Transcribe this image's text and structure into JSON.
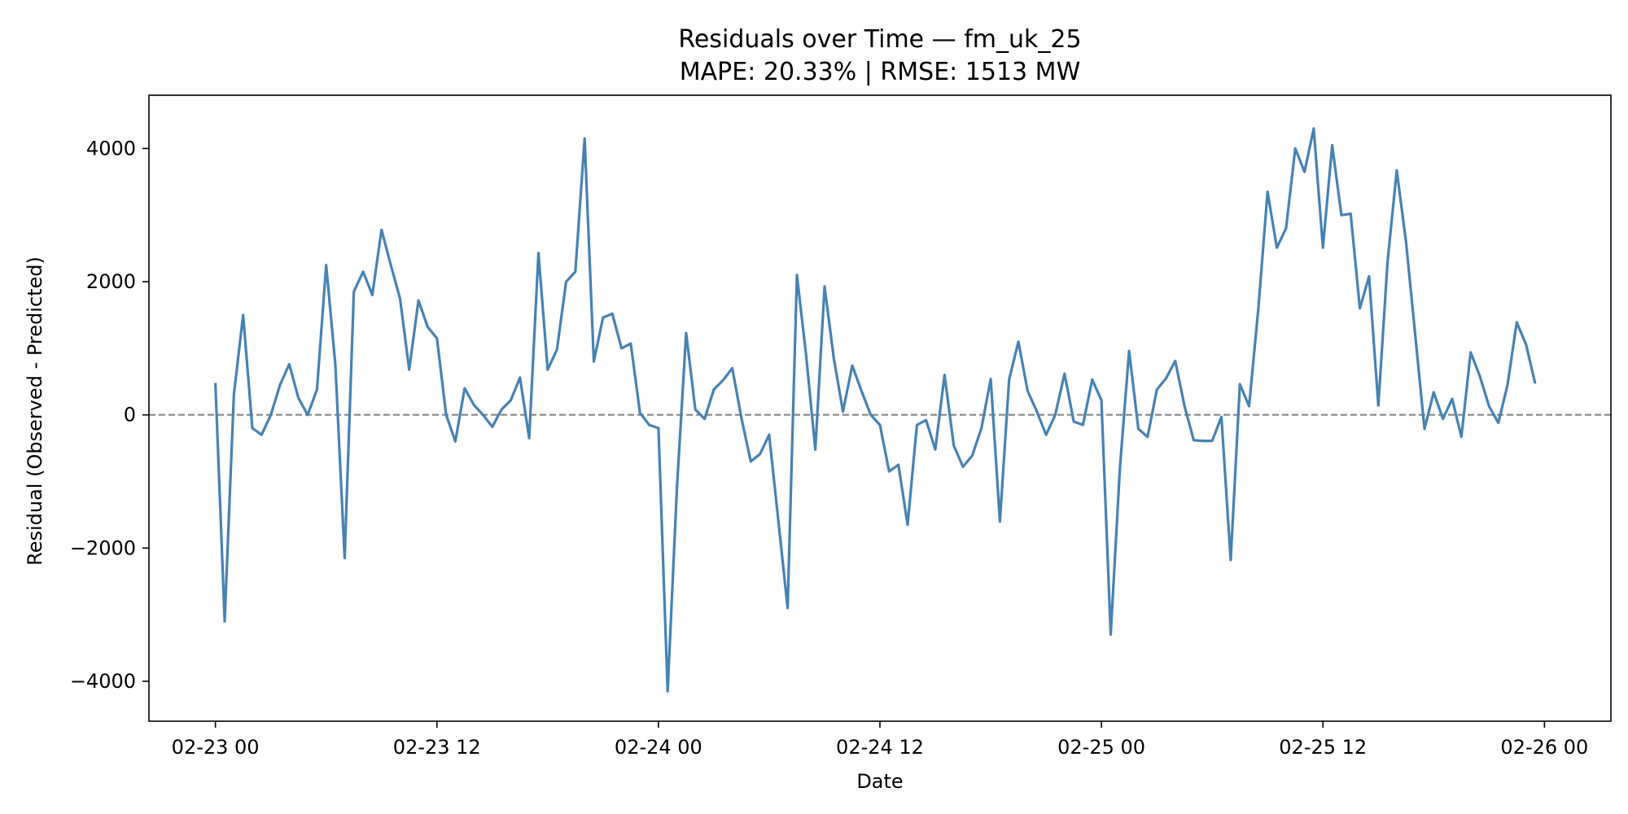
{
  "chart_data": {
    "type": "line",
    "title": "Residuals over Time — fm_uk_25",
    "subtitle": "MAPE: 20.33%  |  RMSE: 1513 MW",
    "xlabel": "Date",
    "ylabel": "Residual (Observed - Predicted)",
    "x_start": "2025-02-23T00:00",
    "x_step_hours": 0.5,
    "xlim": [
      "2025-02-22T20:24",
      "2025-02-26T03:36"
    ],
    "ylim": [
      -4600,
      4800
    ],
    "x_ticks": [
      {
        "value": "2025-02-23T00:00",
        "label": "02-23 00"
      },
      {
        "value": "2025-02-23T12:00",
        "label": "02-23 12"
      },
      {
        "value": "2025-02-24T00:00",
        "label": "02-24 00"
      },
      {
        "value": "2025-02-24T12:00",
        "label": "02-24 12"
      },
      {
        "value": "2025-02-25T00:00",
        "label": "02-25 00"
      },
      {
        "value": "2025-02-25T12:00",
        "label": "02-25 12"
      },
      {
        "value": "2025-02-26T00:00",
        "label": "02-26 00"
      }
    ],
    "y_ticks": [
      {
        "value": 4000,
        "label": "4000"
      },
      {
        "value": 2000,
        "label": "2000"
      },
      {
        "value": 0,
        "label": "0"
      },
      {
        "value": -2000,
        "label": "−2000"
      },
      {
        "value": -4000,
        "label": "−4000"
      }
    ],
    "reference_line": {
      "y": 0,
      "style": "dashed",
      "color": "#808080"
    },
    "grid": false,
    "series": [
      {
        "color": "#4682b4",
        "x": [
          "2025-02-23T00:00",
          "2025-02-23T00:30",
          "2025-02-23T01:00",
          "2025-02-23T01:30",
          "2025-02-23T02:00",
          "2025-02-23T02:30",
          "2025-02-23T03:00",
          "2025-02-23T03:30",
          "2025-02-23T04:00",
          "2025-02-23T04:30",
          "2025-02-23T05:00",
          "2025-02-23T05:30",
          "2025-02-23T06:00",
          "2025-02-23T06:30",
          "2025-02-23T07:00",
          "2025-02-23T07:30",
          "2025-02-23T08:00",
          "2025-02-23T08:30",
          "2025-02-23T09:00",
          "2025-02-23T09:30",
          "2025-02-23T10:00",
          "2025-02-23T10:30",
          "2025-02-23T11:00",
          "2025-02-23T11:30",
          "2025-02-23T12:00",
          "2025-02-23T12:30",
          "2025-02-23T13:00",
          "2025-02-23T13:30",
          "2025-02-23T14:00",
          "2025-02-23T14:30",
          "2025-02-23T15:00",
          "2025-02-23T15:30",
          "2025-02-23T16:00",
          "2025-02-23T16:30",
          "2025-02-23T17:00",
          "2025-02-23T17:30",
          "2025-02-23T18:00",
          "2025-02-23T18:30",
          "2025-02-23T19:00",
          "2025-02-23T19:30",
          "2025-02-23T20:00",
          "2025-02-23T20:30",
          "2025-02-23T21:00",
          "2025-02-23T21:30",
          "2025-02-23T22:00",
          "2025-02-23T22:30",
          "2025-02-23T23:00",
          "2025-02-23T23:30",
          "2025-02-24T00:00",
          "2025-02-24T00:30",
          "2025-02-24T01:00",
          "2025-02-24T01:30",
          "2025-02-24T02:00",
          "2025-02-24T02:30",
          "2025-02-24T03:00",
          "2025-02-24T03:30",
          "2025-02-24T04:00",
          "2025-02-24T04:30",
          "2025-02-24T05:00",
          "2025-02-24T05:30",
          "2025-02-24T06:00",
          "2025-02-24T06:30",
          "2025-02-24T07:00",
          "2025-02-24T07:30",
          "2025-02-24T08:00",
          "2025-02-24T08:30",
          "2025-02-24T09:00",
          "2025-02-24T09:30",
          "2025-02-24T10:00",
          "2025-02-24T10:30",
          "2025-02-24T11:00",
          "2025-02-24T11:30",
          "2025-02-24T12:00",
          "2025-02-24T12:30",
          "2025-02-24T13:00",
          "2025-02-24T13:30",
          "2025-02-24T14:00",
          "2025-02-24T14:30",
          "2025-02-24T15:00",
          "2025-02-24T15:30",
          "2025-02-24T16:00",
          "2025-02-24T16:30",
          "2025-02-24T17:00",
          "2025-02-24T17:30",
          "2025-02-24T18:00",
          "2025-02-24T18:30",
          "2025-02-24T19:00",
          "2025-02-24T19:30",
          "2025-02-24T20:00",
          "2025-02-24T20:30",
          "2025-02-24T21:00",
          "2025-02-24T21:30",
          "2025-02-24T22:00",
          "2025-02-24T22:30",
          "2025-02-24T23:00",
          "2025-02-24T23:30",
          "2025-02-25T00:00",
          "2025-02-25T00:30",
          "2025-02-25T01:00",
          "2025-02-25T01:30",
          "2025-02-25T02:00",
          "2025-02-25T02:30",
          "2025-02-25T03:00",
          "2025-02-25T03:30",
          "2025-02-25T04:00",
          "2025-02-25T04:30",
          "2025-02-25T05:00",
          "2025-02-25T05:30",
          "2025-02-25T06:00",
          "2025-02-25T06:30",
          "2025-02-25T07:00",
          "2025-02-25T07:30",
          "2025-02-25T08:00",
          "2025-02-25T08:30",
          "2025-02-25T09:00",
          "2025-02-25T09:30",
          "2025-02-25T10:00",
          "2025-02-25T10:30",
          "2025-02-25T11:00",
          "2025-02-25T11:30",
          "2025-02-25T12:00",
          "2025-02-25T12:30",
          "2025-02-25T13:00",
          "2025-02-25T13:30",
          "2025-02-25T14:00",
          "2025-02-25T14:30",
          "2025-02-25T15:00",
          "2025-02-25T15:30",
          "2025-02-25T16:00",
          "2025-02-25T16:30",
          "2025-02-25T17:00",
          "2025-02-25T17:30",
          "2025-02-25T18:00",
          "2025-02-25T18:30",
          "2025-02-25T19:00",
          "2025-02-25T19:30",
          "2025-02-25T20:00",
          "2025-02-25T20:30",
          "2025-02-25T21:00",
          "2025-02-25T21:30",
          "2025-02-25T22:00",
          "2025-02-25T22:30",
          "2025-02-25T23:00",
          "2025-02-25T23:30"
        ],
        "y": [
          480,
          -3100,
          300,
          1500,
          -200,
          -300,
          0,
          450,
          760,
          250,
          0,
          380,
          2250,
          750,
          -2150,
          1850,
          2150,
          1800,
          2780,
          2250,
          1750,
          680,
          1720,
          1320,
          1150,
          0,
          -400,
          400,
          150,
          0,
          -180,
          80,
          220,
          560,
          -350,
          2430,
          680,
          980,
          2000,
          2150,
          4150,
          800,
          1460,
          1520,
          1000,
          1070,
          30,
          -150,
          -200,
          -4150,
          -1100,
          1230,
          80,
          -60,
          380,
          520,
          700,
          -50,
          -700,
          -590,
          -300,
          -1600,
          -2900,
          2100,
          900,
          -520,
          1930,
          850,
          50,
          740,
          360,
          0,
          -150,
          -850,
          -750,
          -1650,
          -150,
          -80,
          -520,
          600,
          -460,
          -780,
          -610,
          -200,
          540,
          -1600,
          530,
          1100,
          360,
          50,
          -300,
          0,
          620,
          -100,
          -150,
          530,
          220,
          -3300,
          -800,
          960,
          -210,
          -330,
          380,
          550,
          810,
          130,
          -380,
          -390,
          -390,
          -30,
          -2180,
          460,
          130,
          1600,
          3350,
          2510,
          2800,
          4000,
          3650,
          4300,
          2510,
          4050,
          3000,
          3020,
          1600,
          2080,
          140,
          2300,
          3670,
          2600,
          1200,
          -210,
          340,
          -60,
          240,
          -330,
          940,
          580,
          130,
          -120,
          450,
          1390,
          1060,
          470
        ]
      }
    ]
  }
}
